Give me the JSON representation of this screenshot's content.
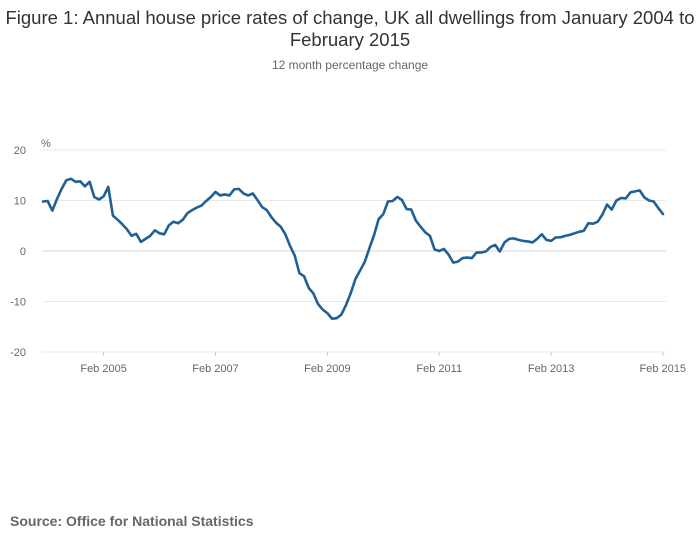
{
  "title": "Figure 1: Annual house price rates of change, UK all dwellings from January 2004 to February 2015",
  "subtitle": "12 month percentage change",
  "source": "Source: Office for National Statistics",
  "chart_data": {
    "type": "line",
    "title": "Figure 1: Annual house price rates of change, UK all dwellings from January 2004 to February 2015",
    "subtitle": "12 month percentage change",
    "ylabel": "%",
    "xlabel": "",
    "ylim": [
      -20,
      20
    ],
    "yticks": [
      "20",
      "10",
      "0",
      "-10",
      "-20"
    ],
    "xticks": [
      "Feb 2005",
      "Feb 2007",
      "Feb 2009",
      "Feb 2011",
      "Feb 2013",
      "Feb 2015"
    ],
    "grid": true,
    "legend": "none",
    "line_color": "#206095",
    "series": [
      {
        "x": [
          "Jan 2004",
          "Feb 2004",
          "Mar 2004",
          "Apr 2004",
          "May 2004",
          "Jun 2004",
          "Jul 2004",
          "Aug 2004",
          "Sep 2004",
          "Oct 2004",
          "Nov 2004",
          "Dec 2004",
          "Jan 2005",
          "Feb 2005",
          "Mar 2005",
          "Apr 2005",
          "May 2005",
          "Jun 2005",
          "Jul 2005",
          "Aug 2005",
          "Sep 2005",
          "Oct 2005",
          "Nov 2005",
          "Dec 2005",
          "Jan 2006",
          "Feb 2006",
          "Mar 2006",
          "Apr 2006",
          "May 2006",
          "Jun 2006",
          "Jul 2006",
          "Aug 2006",
          "Sep 2006",
          "Oct 2006",
          "Nov 2006",
          "Dec 2006",
          "Jan 2007",
          "Feb 2007",
          "Mar 2007",
          "Apr 2007",
          "May 2007",
          "Jun 2007",
          "Jul 2007",
          "Aug 2007",
          "Sep 2007",
          "Oct 2007",
          "Nov 2007",
          "Dec 2007",
          "Jan 2008",
          "Feb 2008",
          "Mar 2008",
          "Apr 2008",
          "May 2008",
          "Jun 2008",
          "Jul 2008",
          "Aug 2008",
          "Sep 2008",
          "Oct 2008",
          "Nov 2008",
          "Dec 2008",
          "Jan 2009",
          "Feb 2009",
          "Mar 2009",
          "Apr 2009",
          "May 2009",
          "Jun 2009",
          "Jul 2009",
          "Aug 2009",
          "Sep 2009",
          "Oct 2009",
          "Nov 2009",
          "Dec 2009",
          "Jan 2010",
          "Feb 2010",
          "Mar 2010",
          "Apr 2010",
          "May 2010",
          "Jun 2010",
          "Jul 2010",
          "Aug 2010",
          "Sep 2010",
          "Oct 2010",
          "Nov 2010",
          "Dec 2010",
          "Jan 2011",
          "Feb 2011",
          "Mar 2011",
          "Apr 2011",
          "May 2011",
          "Jun 2011",
          "Jul 2011",
          "Aug 2011",
          "Sep 2011",
          "Oct 2011",
          "Nov 2011",
          "Dec 2011",
          "Jan 2012",
          "Feb 2012",
          "Mar 2012",
          "Apr 2012",
          "May 2012",
          "Jun 2012",
          "Jul 2012",
          "Aug 2012",
          "Sep 2012",
          "Oct 2012",
          "Nov 2012",
          "Dec 2012",
          "Jan 2013",
          "Feb 2013",
          "Mar 2013",
          "Apr 2013",
          "May 2013",
          "Jun 2013",
          "Jul 2013",
          "Aug 2013",
          "Sep 2013",
          "Oct 2013",
          "Nov 2013",
          "Dec 2013",
          "Jan 2014",
          "Feb 2014",
          "Mar 2014",
          "Apr 2014",
          "May 2014",
          "Jun 2014",
          "Jul 2014",
          "Aug 2014",
          "Sep 2014",
          "Oct 2014",
          "Nov 2014",
          "Dec 2014",
          "Jan 2015",
          "Feb 2015"
        ],
        "values": [
          9.8,
          9.9,
          8.0,
          10.3,
          12.3,
          14.0,
          14.3,
          13.7,
          13.8,
          12.8,
          13.7,
          10.7,
          10.2,
          10.8,
          12.7,
          7.0,
          6.2,
          5.3,
          4.3,
          3.0,
          3.4,
          1.8,
          2.4,
          3.0,
          4.1,
          3.5,
          3.3,
          5.1,
          5.8,
          5.5,
          6.2,
          7.5,
          8.1,
          8.6,
          9.0,
          9.9,
          10.7,
          11.7,
          11.0,
          11.2,
          11.0,
          12.2,
          12.3,
          11.4,
          11.0,
          11.4,
          10.1,
          8.7,
          8.1,
          6.7,
          5.6,
          4.8,
          3.3,
          1.0,
          -0.9,
          -4.4,
          -5.0,
          -7.3,
          -8.4,
          -10.5,
          -11.6,
          -12.3,
          -13.4,
          -13.3,
          -12.6,
          -10.7,
          -8.4,
          -5.6,
          -3.9,
          -2.2,
          0.5,
          3.1,
          6.3,
          7.3,
          9.8,
          9.9,
          10.7,
          10.1,
          8.3,
          8.2,
          6.0,
          4.8,
          3.7,
          3.0,
          0.3,
          0.0,
          0.4,
          -0.7,
          -2.3,
          -2.1,
          -1.4,
          -1.3,
          -1.4,
          -0.3,
          -0.3,
          -0.1,
          0.8,
          1.2,
          -0.1,
          1.7,
          2.4,
          2.5,
          2.2,
          2.0,
          1.9,
          1.7,
          2.4,
          3.3,
          2.2,
          2.0,
          2.7,
          2.7,
          3.0,
          3.2,
          3.5,
          3.8,
          4.0,
          5.5,
          5.4,
          5.8,
          7.2,
          9.2,
          8.2,
          10.0,
          10.5,
          10.4,
          11.6,
          11.8,
          12.0,
          10.6,
          10.0,
          9.8,
          8.5,
          7.3
        ]
      }
    ]
  }
}
